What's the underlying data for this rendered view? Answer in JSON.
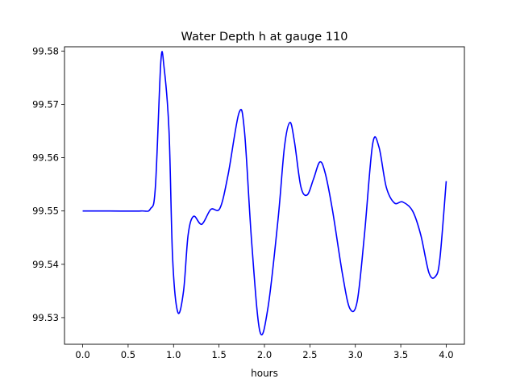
{
  "chart_data": {
    "type": "line",
    "title": "Water Depth h at gauge 110",
    "xlabel": "hours",
    "ylabel": "",
    "xlim": [
      -0.2,
      4.2
    ],
    "ylim": [
      99.525,
      99.5808
    ],
    "xticks": [
      0.0,
      0.5,
      1.0,
      1.5,
      2.0,
      2.5,
      3.0,
      3.5,
      4.0
    ],
    "xtick_labels": [
      "0.0",
      "0.5",
      "1.0",
      "1.5",
      "2.0",
      "2.5",
      "3.0",
      "3.5",
      "4.0"
    ],
    "yticks": [
      99.53,
      99.54,
      99.55,
      99.56,
      99.57,
      99.58
    ],
    "ytick_labels": [
      "99.53",
      "99.54",
      "99.55",
      "99.56",
      "99.57",
      "99.58"
    ],
    "grid": false,
    "series": [
      {
        "name": "h",
        "color": "#0000ff",
        "x": [
          0.0,
          0.3,
          0.64,
          0.745,
          0.8,
          0.86,
          0.895,
          0.95,
          0.99,
          1.047,
          1.11,
          1.16,
          1.22,
          1.31,
          1.41,
          1.51,
          1.6,
          1.72,
          1.78,
          1.86,
          1.95,
          2.04,
          2.15,
          2.22,
          2.28,
          2.33,
          2.4,
          2.47,
          2.54,
          2.61,
          2.67,
          2.75,
          2.86,
          2.94,
          3.02,
          3.1,
          3.19,
          3.26,
          3.34,
          3.43,
          3.52,
          3.63,
          3.72,
          3.81,
          3.88,
          3.93,
          4.0
        ],
        "y": [
          99.55,
          99.55,
          99.55,
          99.5504,
          99.5545,
          99.578,
          99.577,
          99.565,
          99.541,
          99.531,
          99.535,
          99.5455,
          99.549,
          99.5475,
          99.5503,
          99.5505,
          99.5568,
          99.5684,
          99.565,
          99.544,
          99.5274,
          99.532,
          99.5485,
          99.562,
          99.5666,
          99.563,
          99.5546,
          99.553,
          99.556,
          99.5592,
          99.557,
          99.55,
          99.538,
          99.5317,
          99.533,
          99.5455,
          99.5625,
          99.562,
          99.5545,
          99.5515,
          99.5517,
          99.55,
          99.5455,
          99.5384,
          99.5377,
          99.541,
          99.5556
        ]
      }
    ]
  }
}
